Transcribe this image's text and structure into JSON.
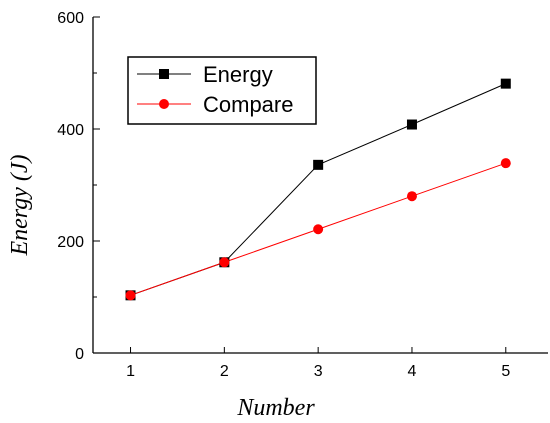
{
  "chart_data": {
    "type": "line",
    "title": "",
    "xlabel": "Number",
    "ylabel": "Energy (J)",
    "xlim": [
      0.6,
      5.45
    ],
    "ylim": [
      0,
      600
    ],
    "xticks": [
      1,
      2,
      3,
      4,
      5
    ],
    "yticks": [
      0,
      200,
      400,
      600
    ],
    "grid": false,
    "legend_position": "top-left",
    "x": [
      1,
      2,
      3,
      4,
      5
    ],
    "series": [
      {
        "name": "Energy",
        "values": [
          103,
          162,
          336,
          408,
          481
        ],
        "color": "#000000",
        "marker": "square"
      },
      {
        "name": "Compare",
        "values": [
          103,
          162,
          221,
          280,
          339
        ],
        "color": "#ff0000",
        "marker": "circle"
      }
    ]
  }
}
